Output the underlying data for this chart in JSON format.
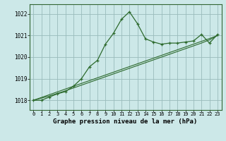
{
  "x": [
    0,
    1,
    2,
    3,
    4,
    5,
    6,
    7,
    8,
    9,
    10,
    11,
    12,
    13,
    14,
    15,
    16,
    17,
    18,
    19,
    20,
    21,
    22,
    23
  ],
  "y_main": [
    1018.0,
    1018.0,
    1018.15,
    1018.3,
    1018.4,
    1018.65,
    1019.0,
    1019.55,
    1019.85,
    1020.6,
    1021.1,
    1021.75,
    1022.1,
    1021.55,
    1020.85,
    1020.7,
    1020.6,
    1020.65,
    1020.65,
    1020.7,
    1020.75,
    1021.05,
    1020.65,
    1021.05
  ],
  "y_trend1": [
    1018.0,
    1018.13,
    1018.26,
    1018.39,
    1018.52,
    1018.65,
    1018.78,
    1018.91,
    1019.04,
    1019.17,
    1019.3,
    1019.43,
    1019.56,
    1019.69,
    1019.82,
    1019.95,
    1020.08,
    1020.21,
    1020.34,
    1020.47,
    1020.6,
    1020.73,
    1020.86,
    1021.0
  ],
  "y_trend2": [
    1018.0,
    1018.1,
    1018.2,
    1018.32,
    1018.44,
    1018.57,
    1018.7,
    1018.83,
    1018.96,
    1019.09,
    1019.22,
    1019.35,
    1019.48,
    1019.61,
    1019.74,
    1019.87,
    1020.0,
    1020.13,
    1020.26,
    1020.39,
    1020.52,
    1020.65,
    1020.8,
    1021.0
  ],
  "bg_color": "#cce8e8",
  "line_color": "#2d6a2d",
  "grid_color": "#99bbbb",
  "xlabel": "Graphe pression niveau de la mer (hPa)",
  "yticks": [
    1018,
    1019,
    1020,
    1021,
    1022
  ],
  "xticks": [
    0,
    1,
    2,
    3,
    4,
    5,
    6,
    7,
    8,
    9,
    10,
    11,
    12,
    13,
    14,
    15,
    16,
    17,
    18,
    19,
    20,
    21,
    22,
    23
  ],
  "ylim": [
    1017.55,
    1022.45
  ],
  "xlim": [
    -0.5,
    23.5
  ]
}
